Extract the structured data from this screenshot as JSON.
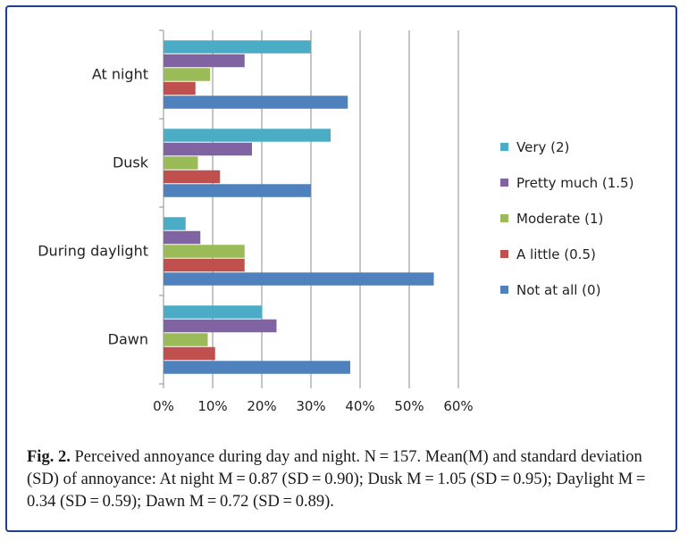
{
  "chart_data": {
    "type": "bar",
    "orientation": "horizontal",
    "categories": [
      "At night",
      "Dusk",
      "During daylight",
      "Dawn"
    ],
    "series": [
      {
        "name": "Very (2)",
        "color": "#4bacc6",
        "values": [
          30,
          34,
          4.5,
          20
        ]
      },
      {
        "name": "Pretty much (1.5)",
        "color": "#8064a2",
        "values": [
          16.5,
          18,
          7.5,
          23
        ]
      },
      {
        "name": "Moderate (1)",
        "color": "#9bbb59",
        "values": [
          9.5,
          7,
          16.5,
          9
        ]
      },
      {
        "name": "A little (0.5)",
        "color": "#c0504d",
        "values": [
          6.5,
          11.5,
          16.5,
          10.5
        ]
      },
      {
        "name": "Not at all (0)",
        "color": "#4f81bd",
        "values": [
          37.5,
          30,
          55,
          38
        ]
      }
    ],
    "xticks": [
      "0%",
      "10%",
      "20%",
      "30%",
      "40%",
      "50%",
      "60%"
    ],
    "xlim": [
      0,
      60
    ],
    "grid": true,
    "legend_position": "right"
  },
  "caption": {
    "label": "Fig. 2.",
    "text": "Perceived annoyance during day and night. N = 157. Mean(M) and standard deviation (SD) of annoyance: At night M = 0.87 (SD = 0.90); Dusk M = 1.05 (SD = 0.95); Daylight M = 0.34 (SD = 0.59); Dawn M = 0.72 (SD = 0.89)."
  }
}
